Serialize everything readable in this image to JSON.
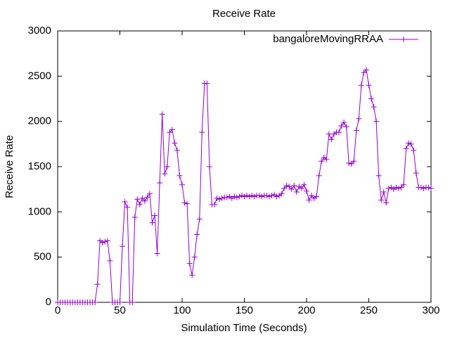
{
  "chart_data": {
    "type": "line",
    "title": "Receive Rate",
    "x_label": "Simulation Time (Seconds)",
    "y_label": "Receive Rate",
    "x": [
      0,
      2,
      4,
      6,
      8,
      10,
      12,
      14,
      16,
      18,
      20,
      22,
      24,
      26,
      28,
      30,
      32,
      34,
      36,
      38,
      40,
      42,
      44,
      46,
      48,
      50,
      52,
      54,
      56,
      58,
      60,
      62,
      64,
      66,
      68,
      70,
      72,
      74,
      76,
      78,
      80,
      82,
      84,
      86,
      88,
      90,
      92,
      94,
      96,
      98,
      100,
      102,
      104,
      106,
      108,
      110,
      112,
      114,
      116,
      118,
      120,
      122,
      124,
      126,
      128,
      130,
      132,
      134,
      136,
      138,
      140,
      142,
      144,
      146,
      148,
      150,
      152,
      154,
      156,
      158,
      160,
      162,
      164,
      166,
      168,
      170,
      172,
      174,
      176,
      178,
      180,
      182,
      184,
      186,
      188,
      190,
      192,
      194,
      196,
      198,
      200,
      202,
      204,
      206,
      208,
      210,
      212,
      214,
      216,
      218,
      220,
      222,
      224,
      226,
      228,
      230,
      232,
      234,
      236,
      238,
      240,
      242,
      244,
      246,
      248,
      250,
      252,
      254,
      256,
      258,
      260,
      262,
      264,
      266,
      268,
      270,
      272,
      274,
      276,
      278,
      280,
      282,
      284,
      286,
      288,
      290,
      292,
      294,
      296,
      298,
      300
    ],
    "series": [
      {
        "name": "bangaloreMovingRRAA",
        "color": "#9400d3",
        "values": [
          0,
          0,
          0,
          0,
          0,
          0,
          0,
          0,
          0,
          0,
          0,
          0,
          0,
          0,
          0,
          0,
          200,
          680,
          660,
          670,
          680,
          460,
          0,
          0,
          0,
          0,
          620,
          1110,
          1050,
          0,
          0,
          940,
          1140,
          1080,
          1150,
          1120,
          1160,
          1200,
          880,
          960,
          540,
          1320,
          2080,
          1420,
          1500,
          1880,
          1910,
          1760,
          1680,
          1400,
          1300,
          1100,
          1090,
          430,
          300,
          500,
          750,
          920,
          1880,
          2420,
          2420,
          1500,
          1080,
          1080,
          1150,
          1140,
          1150,
          1160,
          1160,
          1170,
          1150,
          1170,
          1160,
          1170,
          1180,
          1170,
          1180,
          1170,
          1180,
          1170,
          1180,
          1180,
          1170,
          1180,
          1180,
          1170,
          1180,
          1190,
          1170,
          1180,
          1200,
          1260,
          1290,
          1280,
          1250,
          1290,
          1220,
          1280,
          1260,
          1300,
          1230,
          1130,
          1180,
          1150,
          1170,
          1400,
          1560,
          1600,
          1580,
          1860,
          1800,
          1860,
          1880,
          1880,
          1950,
          1990,
          1940,
          1540,
          1530,
          1560,
          1900,
          2030,
          2400,
          2540,
          2570,
          2400,
          2250,
          2160,
          2000,
          1400,
          1130,
          1220,
          1100,
          1260,
          1270,
          1250,
          1270,
          1260,
          1270,
          1300,
          1700,
          1760,
          1750,
          1680,
          1430,
          1270,
          1270,
          1260,
          1270,
          1270,
          1260
        ]
      }
    ],
    "xlim": [
      0,
      300
    ],
    "xticks": [
      0,
      50,
      100,
      150,
      200,
      250,
      300
    ],
    "ylim": [
      0,
      3000
    ],
    "yticks": [
      0,
      500,
      1000,
      1500,
      2000,
      2500,
      3000
    ],
    "legend": "top-right"
  }
}
